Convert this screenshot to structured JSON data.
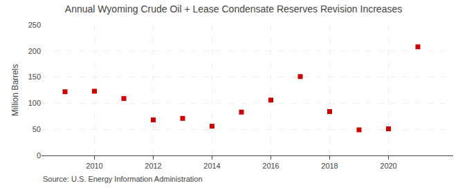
{
  "chart_data": {
    "type": "scatter",
    "title": "Annual Wyoming Crude Oil + Lease Condensate Reserves Revision Increases",
    "ylabel": "Million Barrels",
    "annotations": [
      "Source: U.S. Energy Information Administration"
    ],
    "x": [
      2009,
      2010,
      2011,
      2012,
      2013,
      2014,
      2015,
      2016,
      2017,
      2018,
      2019,
      2020,
      2021
    ],
    "values": [
      122,
      123,
      109,
      68,
      71,
      56,
      83,
      106,
      151,
      84,
      49,
      51,
      208
    ],
    "color": "#cc0000",
    "marker": "square",
    "xlim": [
      2008.2,
      2022.2
    ],
    "xticks": [
      2010,
      2012,
      2014,
      2016,
      2018,
      2020
    ],
    "ylim": [
      0,
      250
    ],
    "yticks": [
      0,
      50,
      100,
      150,
      200,
      250
    ],
    "grid": true
  }
}
